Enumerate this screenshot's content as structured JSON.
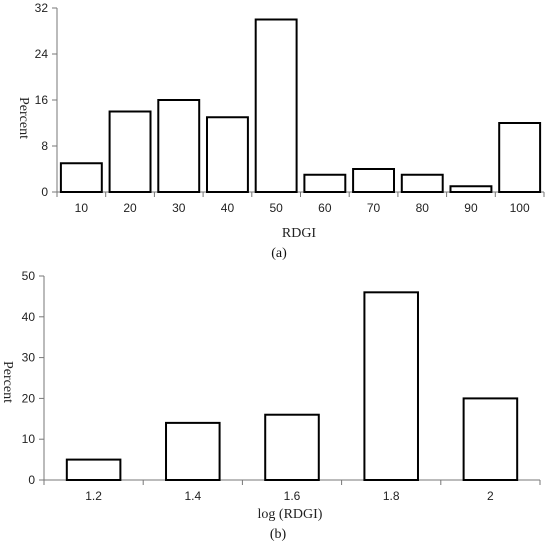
{
  "chart_data": [
    {
      "type": "bar",
      "panel_label": "(a)",
      "categories": [
        "10",
        "20",
        "30",
        "40",
        "50",
        "60",
        "70",
        "80",
        "90",
        "100"
      ],
      "values": [
        5,
        14,
        16,
        13,
        30,
        3,
        4,
        3,
        1,
        12
      ],
      "xlabel": "RDGI",
      "ylabel": "Percent",
      "ylim": [
        0,
        32
      ],
      "yticks": [
        "0",
        "8",
        "16",
        "24",
        "32"
      ],
      "grid": false,
      "bar_color": "#ffffff",
      "edge_color": "#000000"
    },
    {
      "type": "bar",
      "panel_label": "(b)",
      "categories": [
        "1.2",
        "1.4",
        "1.6",
        "1.8",
        "2"
      ],
      "values": [
        5,
        14,
        16,
        46,
        20
      ],
      "xlabel": "log (RDGI)",
      "ylabel": "Percent",
      "ylim": [
        0,
        50
      ],
      "yticks": [
        "0",
        "10",
        "20",
        "30",
        "40",
        "50"
      ],
      "grid": false,
      "bar_color": "#ffffff",
      "edge_color": "#000000"
    }
  ]
}
